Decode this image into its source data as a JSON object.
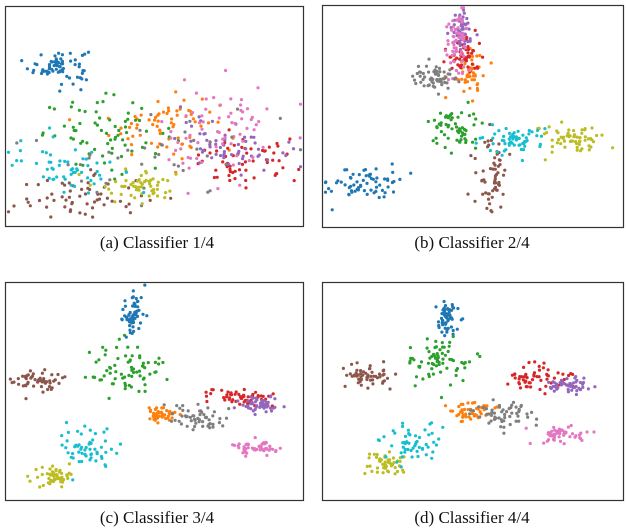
{
  "figure": {
    "captions": [
      "(a) Classifier 1/4",
      "(b) Classifier 2/4",
      "(c) Classifier 3/4",
      "(d) Classifier 4/4"
    ]
  },
  "chart_data": [
    {
      "type": "scatter",
      "caption": "(a) Classifier 1/4",
      "grid": false,
      "xlim": [
        0,
        100
      ],
      "ylim": [
        0,
        100
      ],
      "series": [
        {
          "color": "#1f77b4",
          "center": [
            18,
            73
          ],
          "spread": [
            5,
            4
          ],
          "n": 70
        },
        {
          "color": "#ff7f0e",
          "center": [
            53,
            46
          ],
          "spread": [
            9,
            7
          ],
          "n": 70
        },
        {
          "color": "#2ca02c",
          "center": [
            35,
            42
          ],
          "spread": [
            11,
            8
          ],
          "n": 70
        },
        {
          "color": "#d62728",
          "center": [
            80,
            29
          ],
          "spread": [
            9,
            5
          ],
          "n": 60
        },
        {
          "color": "#9467bd",
          "center": [
            76,
            38
          ],
          "spread": [
            9,
            6
          ],
          "n": 60
        },
        {
          "color": "#8c564b",
          "center": [
            25,
            13
          ],
          "spread": [
            11,
            5
          ],
          "n": 60
        },
        {
          "color": "#e377c2",
          "center": [
            72,
            42
          ],
          "spread": [
            10,
            12
          ],
          "n": 70
        },
        {
          "color": "#7f7f7f",
          "center": [
            50,
            33
          ],
          "spread": [
            22,
            12
          ],
          "n": 40
        },
        {
          "color": "#bcbd22",
          "center": [
            45,
            19
          ],
          "spread": [
            7,
            3.5
          ],
          "n": 55
        },
        {
          "color": "#17becf",
          "center": [
            20,
            28
          ],
          "spread": [
            9,
            6
          ],
          "n": 55
        }
      ]
    },
    {
      "type": "scatter",
      "caption": "(b) Classifier 2/4",
      "grid": false,
      "xlim": [
        0,
        100
      ],
      "ylim": [
        0,
        100
      ],
      "series": [
        {
          "color": "#1f77b4",
          "center": [
            14,
            20
          ],
          "spread": [
            6,
            4
          ],
          "n": 65
        },
        {
          "color": "#ff7f0e",
          "center": [
            49,
            70
          ],
          "spread": [
            2.5,
            5
          ],
          "n": 50
        },
        {
          "color": "#2ca02c",
          "center": [
            44,
            44
          ],
          "spread": [
            4,
            5
          ],
          "n": 60
        },
        {
          "color": "#d62728",
          "center": [
            47,
            78
          ],
          "spread": [
            3,
            4
          ],
          "n": 55
        },
        {
          "color": "#9467bd",
          "center": [
            46,
            88
          ],
          "spread": [
            2,
            5
          ],
          "n": 55
        },
        {
          "color": "#8c564b",
          "center": [
            56,
            24
          ],
          "spread": [
            2.5,
            9
          ],
          "n": 60
        },
        {
          "color": "#e377c2",
          "center": [
            45,
            84
          ],
          "spread": [
            2,
            7
          ],
          "n": 60
        },
        {
          "color": "#7f7f7f",
          "center": [
            37,
            68
          ],
          "spread": [
            3.5,
            2.5
          ],
          "n": 60
        },
        {
          "color": "#bcbd22",
          "center": [
            81,
            40
          ],
          "spread": [
            6,
            3
          ],
          "n": 60
        },
        {
          "color": "#17becf",
          "center": [
            63,
            39
          ],
          "spread": [
            5,
            3
          ],
          "n": 60
        }
      ]
    },
    {
      "type": "scatter",
      "caption": "(c) Classifier 3/4",
      "grid": false,
      "xlim": [
        0,
        100
      ],
      "ylim": [
        0,
        100
      ],
      "series": [
        {
          "color": "#1f77b4",
          "center": [
            43,
            86
          ],
          "spread": [
            2,
            5
          ],
          "n": 60
        },
        {
          "color": "#ff7f0e",
          "center": [
            52,
            39
          ],
          "spread": [
            3,
            2
          ],
          "n": 45
        },
        {
          "color": "#2ca02c",
          "center": [
            41,
            60
          ],
          "spread": [
            6,
            6
          ],
          "n": 70
        },
        {
          "color": "#d62728",
          "center": [
            78,
            47
          ],
          "spread": [
            6,
            2
          ],
          "n": 55
        },
        {
          "color": "#9467bd",
          "center": [
            86,
            44
          ],
          "spread": [
            3.5,
            2
          ],
          "n": 50
        },
        {
          "color": "#8c564b",
          "center": [
            11,
            55
          ],
          "spread": [
            4,
            2.5
          ],
          "n": 55
        },
        {
          "color": "#e377c2",
          "center": [
            84,
            24
          ],
          "spread": [
            4,
            1.5
          ],
          "n": 50
        },
        {
          "color": "#7f7f7f",
          "center": [
            64,
            38
          ],
          "spread": [
            5,
            3
          ],
          "n": 55
        },
        {
          "color": "#bcbd22",
          "center": [
            16,
            11
          ],
          "spread": [
            3,
            2.5
          ],
          "n": 55
        },
        {
          "color": "#17becf",
          "center": [
            27,
            23
          ],
          "spread": [
            5,
            5
          ],
          "n": 55
        }
      ]
    },
    {
      "type": "scatter",
      "caption": "(d) Classifier 4/4",
      "grid": false,
      "xlim": [
        0,
        100
      ],
      "ylim": [
        0,
        100
      ],
      "series": [
        {
          "color": "#1f77b4",
          "center": [
            41,
            83
          ],
          "spread": [
            2,
            4
          ],
          "n": 60
        },
        {
          "color": "#ff7f0e",
          "center": [
            49,
            41
          ],
          "spread": [
            3.5,
            2.5
          ],
          "n": 45
        },
        {
          "color": "#2ca02c",
          "center": [
            39,
            64
          ],
          "spread": [
            5,
            5
          ],
          "n": 70
        },
        {
          "color": "#d62728",
          "center": [
            71,
            56
          ],
          "spread": [
            5,
            3
          ],
          "n": 55
        },
        {
          "color": "#9467bd",
          "center": [
            82,
            53
          ],
          "spread": [
            4,
            2
          ],
          "n": 50
        },
        {
          "color": "#8c564b",
          "center": [
            15,
            57
          ],
          "spread": [
            4,
            3
          ],
          "n": 55
        },
        {
          "color": "#e377c2",
          "center": [
            80,
            30
          ],
          "spread": [
            5,
            2
          ],
          "n": 50
        },
        {
          "color": "#7f7f7f",
          "center": [
            61,
            39
          ],
          "spread": [
            5,
            3
          ],
          "n": 55
        },
        {
          "color": "#bcbd22",
          "center": [
            20,
            17
          ],
          "spread": [
            3,
            2.5
          ],
          "n": 55
        },
        {
          "color": "#17becf",
          "center": [
            30,
            26
          ],
          "spread": [
            5,
            5
          ],
          "n": 55
        }
      ]
    }
  ]
}
